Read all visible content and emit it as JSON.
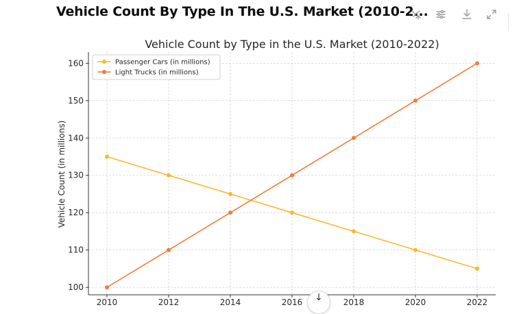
{
  "header": {
    "title": "Vehicle Count By Type In The U.S. Market (2010-2...",
    "tools": [
      "chart-type-icon",
      "filter-icon",
      "download-icon",
      "expand-icon"
    ]
  },
  "chart_data": {
    "type": "line",
    "title": "Vehicle Count by Type in the U.S. Market (2010-2022)",
    "xlabel": "",
    "ylabel": "Vehicle Count (in millions)",
    "x": [
      2010,
      2012,
      2014,
      2016,
      2018,
      2020,
      2022
    ],
    "ylim": [
      98,
      163
    ],
    "yticks": [
      100,
      110,
      120,
      130,
      140,
      150,
      160
    ],
    "grid": true,
    "legend_position": "top-left",
    "series": [
      {
        "name": "Passenger Cars (in millions)",
        "color": "#fbb829",
        "values": [
          135,
          130,
          125,
          120,
          115,
          110,
          105
        ]
      },
      {
        "name": "Light Trucks (in millions)",
        "color": "#f47b36",
        "values": [
          100,
          110,
          120,
          130,
          140,
          150,
          160
        ]
      }
    ]
  },
  "scroll_button": {
    "glyph": "↓"
  }
}
